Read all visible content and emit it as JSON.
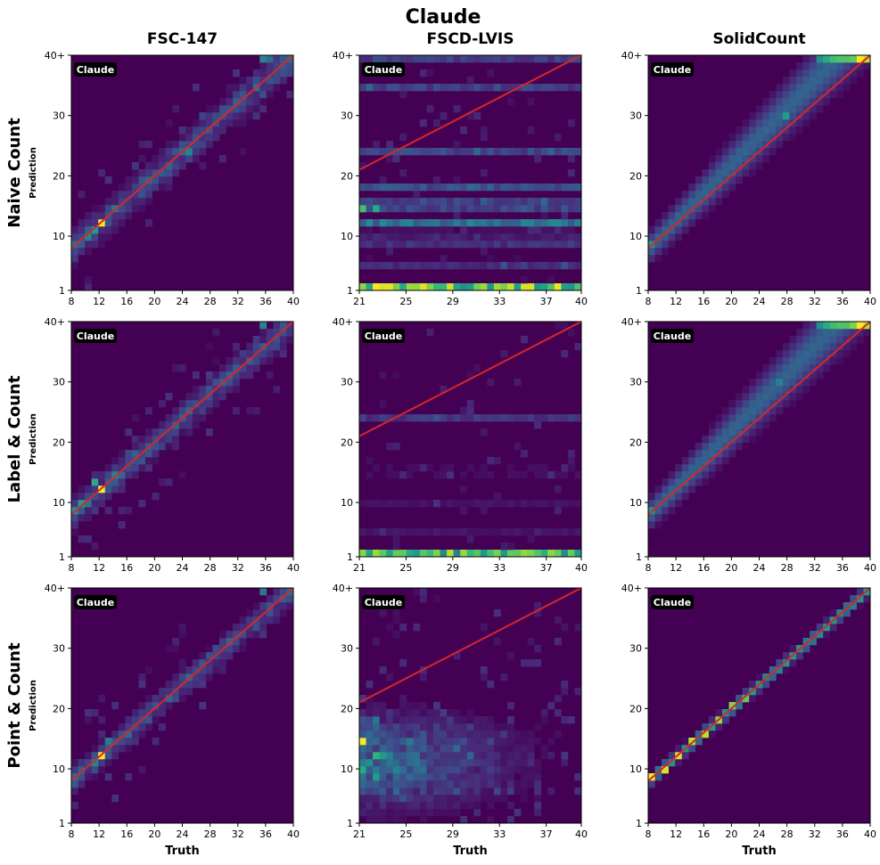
{
  "title": "Claude",
  "colors": {
    "background": "#440154",
    "diagonal": "#d62728",
    "axis": "#000000",
    "badge_bg": "#000000",
    "badge_text": "#ffffff"
  },
  "columns": [
    "FSC-147",
    "FSCD-LVIS",
    "SolidCount"
  ],
  "rows": [
    "Naive Count",
    "Label & Count",
    "Point & Count"
  ],
  "xlabel": "Truth",
  "ylabel": "Prediction",
  "badge_label": "Claude",
  "ytick_labels": [
    "1",
    "10",
    "20",
    "30",
    "40+"
  ],
  "ytick_values": [
    1,
    10,
    20,
    30,
    40
  ],
  "chart_data": [
    {
      "type": "heatmap",
      "row": 0,
      "col": 0,
      "column_title": "FSC-147",
      "row_title": "Naive Count",
      "xlabel": "",
      "ylabel": "Prediction",
      "xlim": [
        8,
        40
      ],
      "ylim": [
        1,
        40
      ],
      "xticks": [
        8,
        12,
        16,
        20,
        24,
        28,
        32,
        36,
        40
      ],
      "diagonal": [
        [
          8,
          8
        ],
        [
          40,
          40
        ]
      ],
      "pattern": "diag",
      "spread": 1.8,
      "noise": 0.12,
      "hotspots": [
        [
          12,
          12,
          1.0
        ],
        [
          11,
          11,
          0.55
        ],
        [
          10,
          10,
          0.45
        ],
        [
          8,
          8,
          0.35
        ],
        [
          14,
          14,
          0.4
        ],
        [
          25,
          24,
          0.45
        ],
        [
          24,
          24,
          0.35
        ],
        [
          20,
          20,
          0.25
        ],
        [
          36,
          40,
          0.45
        ],
        [
          37,
          40,
          0.35
        ],
        [
          30,
          30,
          0.25
        ]
      ]
    },
    {
      "type": "heatmap",
      "row": 0,
      "col": 1,
      "column_title": "FSCD-LVIS",
      "row_title": "Naive Count",
      "xlabel": "",
      "ylabel": "",
      "xlim": [
        21,
        40
      ],
      "ylim": [
        1,
        40
      ],
      "xticks": [
        21,
        25,
        29,
        33,
        37,
        40
      ],
      "diagonal": [
        [
          21,
          21
        ],
        [
          40,
          40
        ]
      ],
      "pattern": "bands",
      "bands": [
        [
          1,
          0.85
        ],
        [
          15,
          0.55
        ],
        [
          12,
          0.45
        ],
        [
          18,
          0.3
        ],
        [
          24,
          0.25
        ],
        [
          35,
          0.22
        ],
        [
          40,
          0.2
        ],
        [
          8,
          0.2
        ],
        [
          5,
          0.18
        ],
        [
          10,
          0.15
        ]
      ],
      "noise": 0.1,
      "hotspots": [
        [
          22,
          1,
          1.0
        ],
        [
          23,
          1,
          0.95
        ],
        [
          24,
          1,
          0.8
        ],
        [
          21,
          15,
          0.7
        ],
        [
          22,
          15,
          0.6
        ]
      ]
    },
    {
      "type": "heatmap",
      "row": 0,
      "col": 2,
      "column_title": "SolidCount",
      "row_title": "Naive Count",
      "xlabel": "",
      "ylabel": "",
      "xlim": [
        8,
        40
      ],
      "ylim": [
        1,
        40
      ],
      "xticks": [
        8,
        12,
        16,
        20,
        24,
        28,
        32,
        36,
        40
      ],
      "diagonal": [
        [
          8,
          8
        ],
        [
          40,
          40
        ]
      ],
      "pattern": "overcount",
      "spread": 1.5,
      "noise": 0.0,
      "hotspots": [
        [
          39,
          40,
          1.0
        ],
        [
          40,
          40,
          0.9
        ],
        [
          38,
          40,
          0.75
        ],
        [
          36,
          40,
          0.55
        ],
        [
          28,
          30,
          0.55
        ],
        [
          8,
          8,
          0.5
        ]
      ]
    },
    {
      "type": "heatmap",
      "row": 1,
      "col": 0,
      "column_title": "FSC-147",
      "row_title": "Label & Count",
      "xlabel": "",
      "ylabel": "Prediction",
      "xlim": [
        8,
        40
      ],
      "ylim": [
        1,
        40
      ],
      "xticks": [
        8,
        12,
        16,
        20,
        24,
        28,
        32,
        36,
        40
      ],
      "diagonal": [
        [
          8,
          8
        ],
        [
          40,
          40
        ]
      ],
      "pattern": "diag",
      "spread": 1.6,
      "noise": 0.12,
      "hotspots": [
        [
          12,
          12,
          1.0
        ],
        [
          11,
          13,
          0.6
        ],
        [
          9,
          10,
          0.55
        ],
        [
          8,
          8,
          0.5
        ],
        [
          14,
          15,
          0.45
        ],
        [
          10,
          9,
          0.4
        ],
        [
          36,
          40,
          0.45
        ],
        [
          24,
          24,
          0.3
        ],
        [
          30,
          30,
          0.3
        ]
      ]
    },
    {
      "type": "heatmap",
      "row": 1,
      "col": 1,
      "column_title": "FSCD-LVIS",
      "row_title": "Label & Count",
      "xlabel": "",
      "ylabel": "",
      "xlim": [
        21,
        40
      ],
      "ylim": [
        1,
        40
      ],
      "xticks": [
        21,
        25,
        29,
        33,
        37,
        40
      ],
      "diagonal": [
        [
          21,
          21
        ],
        [
          40,
          40
        ]
      ],
      "pattern": "bands",
      "bands": [
        [
          1,
          0.75
        ],
        [
          24,
          0.18
        ],
        [
          10,
          0.1
        ],
        [
          15,
          0.1
        ],
        [
          5,
          0.08
        ]
      ],
      "noise": 0.07,
      "hotspots": [
        [
          22,
          1,
          0.85
        ],
        [
          23,
          1,
          0.75
        ],
        [
          25,
          1,
          0.6
        ],
        [
          29,
          1,
          0.55
        ]
      ]
    },
    {
      "type": "heatmap",
      "row": 1,
      "col": 2,
      "column_title": "SolidCount",
      "row_title": "Label & Count",
      "xlabel": "",
      "ylabel": "",
      "xlim": [
        8,
        40
      ],
      "ylim": [
        1,
        40
      ],
      "xticks": [
        8,
        12,
        16,
        20,
        24,
        28,
        32,
        36,
        40
      ],
      "diagonal": [
        [
          8,
          8
        ],
        [
          40,
          40
        ]
      ],
      "pattern": "overcount",
      "spread": 1.5,
      "noise": 0.0,
      "hotspots": [
        [
          39,
          40,
          1.0
        ],
        [
          40,
          40,
          0.9
        ],
        [
          38,
          40,
          0.8
        ],
        [
          37,
          40,
          0.6
        ],
        [
          27,
          30,
          0.45
        ],
        [
          8,
          8,
          0.5
        ]
      ]
    },
    {
      "type": "heatmap",
      "row": 2,
      "col": 0,
      "column_title": "FSC-147",
      "row_title": "Point & Count",
      "xlabel": "Truth",
      "ylabel": "Prediction",
      "xlim": [
        8,
        40
      ],
      "ylim": [
        1,
        40
      ],
      "xticks": [
        8,
        12,
        16,
        20,
        24,
        28,
        32,
        36,
        40
      ],
      "diagonal": [
        [
          8,
          8
        ],
        [
          40,
          40
        ]
      ],
      "pattern": "diag",
      "spread": 1.4,
      "noise": 0.09,
      "hotspots": [
        [
          12,
          12,
          1.0
        ],
        [
          11,
          11,
          0.45
        ],
        [
          13,
          14,
          0.4
        ],
        [
          8,
          8,
          0.35
        ],
        [
          25,
          25,
          0.3
        ],
        [
          36,
          40,
          0.4
        ],
        [
          20,
          20,
          0.25
        ]
      ]
    },
    {
      "type": "heatmap",
      "row": 2,
      "col": 1,
      "column_title": "FSCD-LVIS",
      "row_title": "Point & Count",
      "xlabel": "Truth",
      "ylabel": "",
      "xlim": [
        21,
        40
      ],
      "ylim": [
        1,
        40
      ],
      "xticks": [
        21,
        25,
        29,
        33,
        37,
        40
      ],
      "diagonal": [
        [
          21,
          21
        ],
        [
          40,
          40
        ]
      ],
      "pattern": "cloud",
      "noise": 0.12,
      "hotspots": [
        [
          21,
          15,
          1.0
        ],
        [
          22,
          12,
          0.65
        ],
        [
          21,
          10,
          0.6
        ],
        [
          23,
          12,
          0.55
        ],
        [
          22,
          8,
          0.55
        ],
        [
          24,
          10,
          0.45
        ],
        [
          22,
          18,
          0.4
        ],
        [
          25,
          14,
          0.4
        ]
      ]
    },
    {
      "type": "heatmap",
      "row": 2,
      "col": 2,
      "column_title": "SolidCount",
      "row_title": "Point & Count",
      "xlabel": "Truth",
      "ylabel": "",
      "xlim": [
        8,
        40
      ],
      "ylim": [
        1,
        40
      ],
      "xticks": [
        8,
        12,
        16,
        20,
        24,
        28,
        32,
        36,
        40
      ],
      "diagonal": [
        [
          8,
          8
        ],
        [
          40,
          40
        ]
      ],
      "pattern": "tightdiag",
      "spread": 0.6,
      "noise": 0.0,
      "hotspots": [
        [
          8,
          8,
          1.0
        ],
        [
          10,
          10,
          0.95
        ],
        [
          12,
          12,
          0.95
        ],
        [
          14,
          14,
          0.9
        ],
        [
          16,
          16,
          0.9
        ],
        [
          18,
          18,
          0.85
        ],
        [
          20,
          20,
          0.8
        ],
        [
          22,
          22,
          0.75
        ]
      ]
    }
  ]
}
